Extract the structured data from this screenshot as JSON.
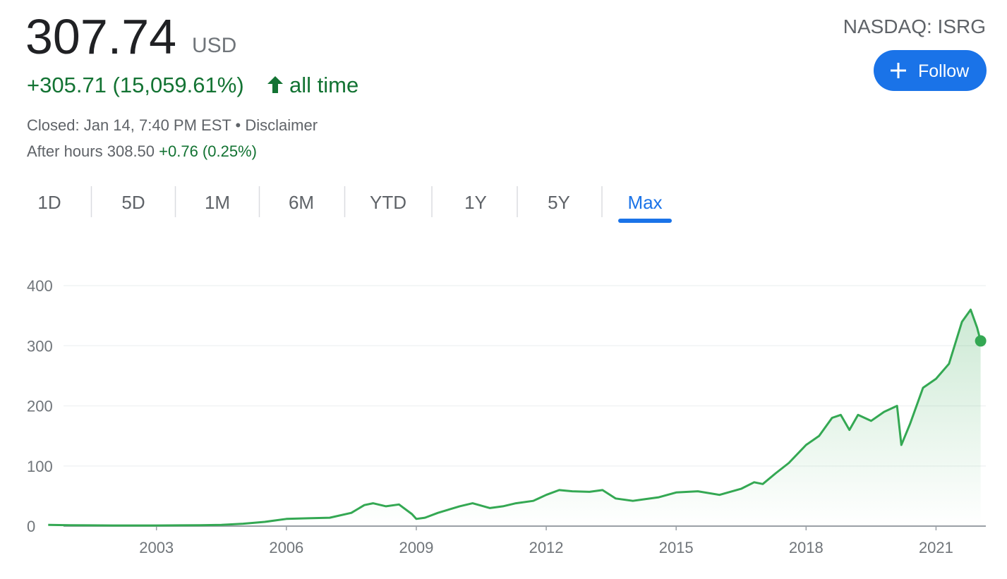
{
  "header": {
    "price": "307.74",
    "currency": "USD",
    "change": "+305.71 (15,059.61%)",
    "period": "all time",
    "status": "Closed: Jan 14, 7:40 PM EST • Disclaimer",
    "after_hours_label": "After hours",
    "after_hours_price": "308.50",
    "after_hours_change": "+0.76 (0.25%)",
    "ticker": "NASDAQ: ISRG",
    "follow_button": "Follow"
  },
  "tabs": {
    "items": [
      "1D",
      "5D",
      "1M",
      "6M",
      "YTD",
      "1Y",
      "5Y",
      "Max"
    ],
    "selected": "Max"
  },
  "chart_data": {
    "type": "line",
    "grid": true,
    "x": [
      2000.5,
      2001,
      2002,
      2003,
      2004,
      2004.5,
      2005,
      2005.5,
      2006,
      2006.5,
      2007,
      2007.5,
      2007.8,
      2008,
      2008.3,
      2008.6,
      2008.9,
      2009.0,
      2009.2,
      2009.5,
      2010,
      2010.3,
      2010.7,
      2011,
      2011.3,
      2011.7,
      2012,
      2012.3,
      2012.6,
      2013,
      2013.3,
      2013.6,
      2014,
      2014.3,
      2014.6,
      2015,
      2015.5,
      2016,
      2016.5,
      2016.8,
      2017,
      2017.3,
      2017.6,
      2018,
      2018.3,
      2018.6,
      2018.8,
      2019,
      2019.2,
      2019.5,
      2019.8,
      2020.1,
      2020.2,
      2020.4,
      2020.7,
      2021,
      2021.3,
      2021.6,
      2021.8,
      2021.95,
      2022.03
    ],
    "series": [
      {
        "name": "ISRG",
        "color": "#34a853",
        "values": [
          2,
          1.5,
          1,
          1,
          1.5,
          2,
          4,
          7,
          12,
          13,
          14,
          22,
          35,
          38,
          33,
          36,
          20,
          12,
          14,
          22,
          33,
          38,
          30,
          33,
          38,
          42,
          52,
          60,
          58,
          57,
          60,
          46,
          42,
          45,
          48,
          56,
          58,
          52,
          62,
          73,
          70,
          88,
          105,
          135,
          150,
          180,
          185,
          160,
          185,
          175,
          190,
          200,
          135,
          170,
          230,
          245,
          270,
          340,
          360,
          330,
          308
        ]
      }
    ],
    "xlim": [
      2000.3,
      2022.15
    ],
    "xticks": [
      2003,
      2006,
      2009,
      2012,
      2015,
      2018,
      2021
    ],
    "ylim": [
      0,
      400
    ],
    "yticks": [
      0,
      100,
      200,
      300,
      400
    ]
  }
}
